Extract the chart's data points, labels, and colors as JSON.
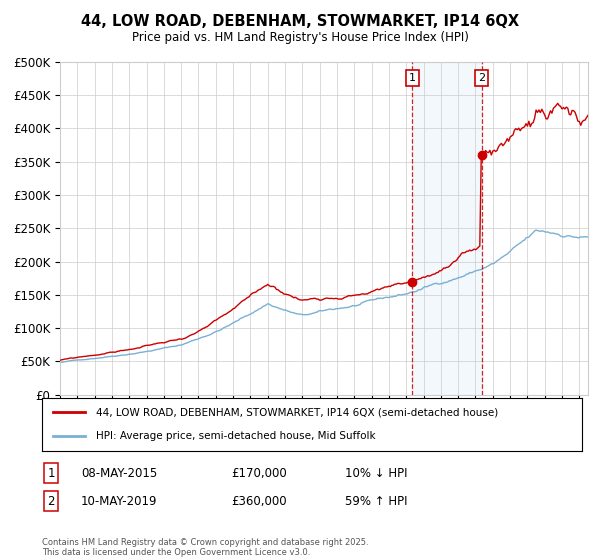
{
  "title": "44, LOW ROAD, DEBENHAM, STOWMARKET, IP14 6QX",
  "subtitle": "Price paid vs. HM Land Registry's House Price Index (HPI)",
  "legend_line1": "44, LOW ROAD, DEBENHAM, STOWMARKET, IP14 6QX (semi-detached house)",
  "legend_line2": "HPI: Average price, semi-detached house, Mid Suffolk",
  "annotation1_label": "1",
  "annotation1_date": "08-MAY-2015",
  "annotation1_price": "£170,000",
  "annotation1_hpi": "10% ↓ HPI",
  "annotation2_label": "2",
  "annotation2_date": "10-MAY-2019",
  "annotation2_price": "£360,000",
  "annotation2_hpi": "59% ↑ HPI",
  "copyright": "Contains HM Land Registry data © Crown copyright and database right 2025.\nThis data is licensed under the Open Government Licence v3.0.",
  "sale1_year": 2015.35,
  "sale2_year": 2019.36,
  "sale1_value": 170000,
  "sale2_value": 360000,
  "red_color": "#cc0000",
  "blue_color": "#7ab0d4",
  "shade_color": "#d6e8f5",
  "vline_color": "#cc0000",
  "background_color": "#ffffff",
  "grid_color": "#cccccc",
  "ylim_max": 500000,
  "ylim_min": 0,
  "xlim_min": 1995,
  "xlim_max": 2025.5,
  "ylabel_step": 50000
}
